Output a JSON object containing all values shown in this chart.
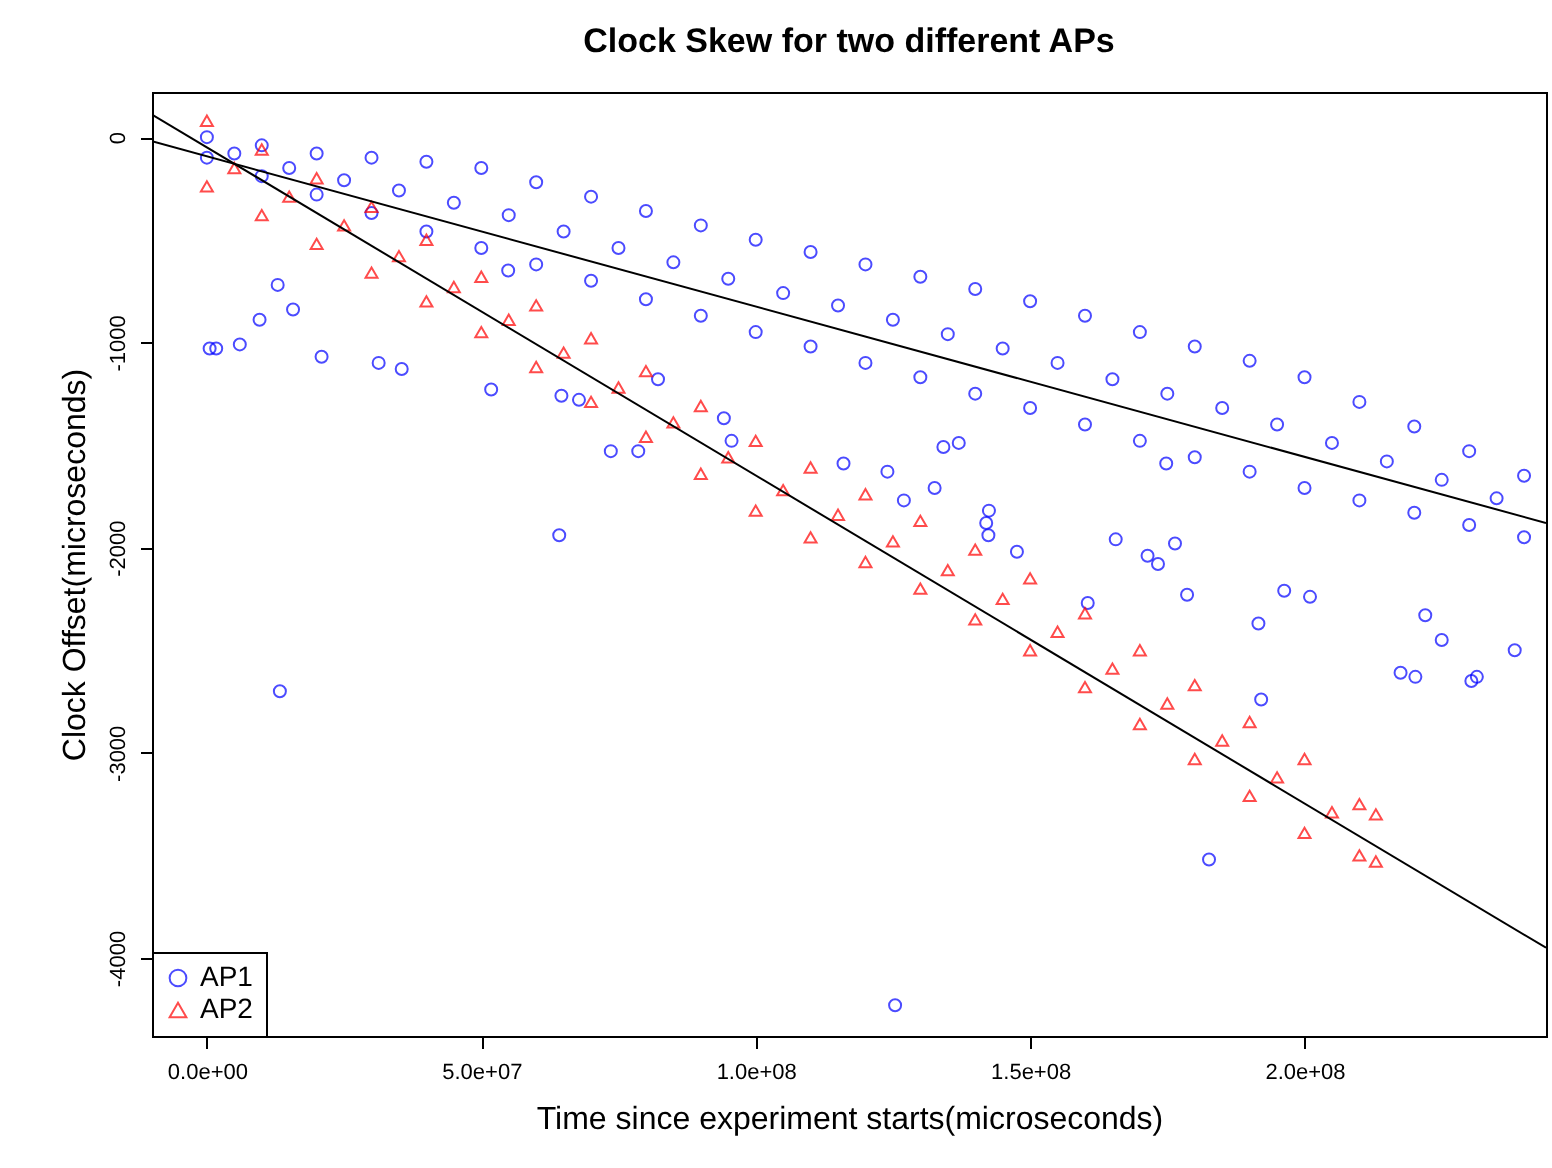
{
  "chart_data": {
    "type": "scatter",
    "title": "Clock Skew for two different APs",
    "xlabel": "Time since experiment starts(microseconds)",
    "ylabel": "Clock Offset(microseconds)",
    "xlim": [
      -10000000.0,
      244000000.0
    ],
    "ylim": [
      -4380,
      220
    ],
    "xticks": [
      {
        "value": 0,
        "label": "0.0e+00"
      },
      {
        "value": 50000000.0,
        "label": "5.0e+07"
      },
      {
        "value": 100000000.0,
        "label": "1.0e+08"
      },
      {
        "value": 150000000.0,
        "label": "1.5e+08"
      },
      {
        "value": 200000000.0,
        "label": "2.0e+08"
      }
    ],
    "yticks": [
      0,
      -1000,
      -2000,
      -3000,
      -4000
    ],
    "grid": false,
    "legend": "bottom left",
    "series": [
      {
        "name": "AP1",
        "color": "#0000ff",
        "marker": "circle",
        "x": [
          0,
          0,
          10000000.0,
          10000000.0,
          20000000.0,
          20000000.0,
          30000000.0,
          30000000.0,
          40000000.0,
          40000000.0,
          50000000.0,
          50000000.0,
          60000000.0,
          60000000.0,
          70000000.0,
          70000000.0,
          80000000.0,
          80000000.0,
          90000000.0,
          90000000.0,
          100000000.0,
          100000000.0,
          110000000.0,
          110000000.0,
          120000000.0,
          120000000.0,
          130000000.0,
          130000000.0,
          140000000.0,
          140000000.0,
          150000000.0,
          150000000.0,
          160000000.0,
          160000000.0,
          170000000.0,
          170000000.0,
          180000000.0,
          180000000.0,
          190000000.0,
          190000000.0,
          200000000.0,
          200000000.0,
          210000000.0,
          210000000.0,
          220000000.0,
          220000000.0,
          230000000.0,
          230000000.0,
          240000000.0,
          240000000.0,
          5000000.0,
          15000000.0,
          25000000.0,
          35000000.0,
          45000000.0,
          55000000.0,
          65000000.0,
          75000000.0,
          85000000.0,
          95000000.0,
          105000000.0,
          115000000.0,
          125000000.0,
          135000000.0,
          145000000.0,
          155000000.0,
          165000000.0,
          175000000.0,
          185000000.0,
          195000000.0,
          205000000.0,
          215000000.0,
          225000000.0,
          235000000.0,
          500000.0,
          1700000.0,
          6000000.0,
          9600000.0,
          12900000.0,
          15700000.0,
          20900000.0,
          31300000.0,
          35500000.0,
          51800000.0,
          54900000.0,
          64600000.0,
          67800000.0,
          73600000.0,
          78600000.0,
          64200000.0,
          82200000.0,
          94200000.0,
          95600000.0,
          116000000.0,
          124000000.0,
          127000000.0,
          132600000.0,
          134200000.0,
          137000000.0,
          142500000.0,
          142000000.0,
          142400000.0,
          147600000.0,
          160500000.0,
          165600000.0,
          171400000.0,
          173300000.0,
          176400000.0,
          178600000.0,
          191600000.0,
          196300000.0,
          201000000.0,
          192100000.0,
          222000000.0,
          225000000.0,
          217500000.0,
          220200000.0,
          230400000.0,
          231400000.0,
          238300000.0,
          182600000.0,
          174800000.0,
          13300000.0,
          125400000.0
        ],
        "values": [
          0,
          -100,
          -40,
          -190,
          -80,
          -280,
          -100,
          -370,
          -120,
          -460,
          -150,
          -540,
          -220,
          -620,
          -290,
          -700,
          -360,
          -790,
          -430,
          -870,
          -500,
          -950,
          -560,
          -1020,
          -620,
          -1100,
          -680,
          -1170,
          -740,
          -1250,
          -800,
          -1320,
          -870,
          -1400,
          -950,
          -1480,
          -1020,
          -1560,
          -1090,
          -1630,
          -1170,
          -1710,
          -1290,
          -1770,
          -1410,
          -1830,
          -1530,
          -1890,
          -1650,
          -1950,
          -80,
          -150,
          -210,
          -260,
          -320,
          -380,
          -460,
          -540,
          -610,
          -690,
          -760,
          -820,
          -890,
          -960,
          -1030,
          -1100,
          -1180,
          -1250,
          -1320,
          -1400,
          -1490,
          -1580,
          -1670,
          -1760,
          -1030,
          -1030,
          -1010,
          -890,
          -720,
          -840,
          -1070,
          -1100,
          -1130,
          -1230,
          -650,
          -1260,
          -1280,
          -1530,
          -1530,
          -1940,
          -1180,
          -1370,
          -1480,
          -1590,
          -1630,
          -1770,
          -1710,
          -1510,
          -1490,
          -1820,
          -1880,
          -1940,
          -2020,
          -2270,
          -1960,
          -2040,
          -2080,
          -1980,
          -2230,
          -2370,
          -2210,
          -2240,
          -2740,
          -2330,
          -2450,
          -2610,
          -2630,
          -2650,
          -2630,
          -2500,
          -3520,
          -1590,
          -2700,
          -4230
        ]
      },
      {
        "name": "AP2",
        "color": "#ff0000",
        "marker": "triangle",
        "x": [
          0,
          0,
          10000000.0,
          10000000.0,
          20000000.0,
          20000000.0,
          30000000.0,
          30000000.0,
          40000000.0,
          40000000.0,
          50000000.0,
          50000000.0,
          60000000.0,
          60000000.0,
          70000000.0,
          70000000.0,
          80000000.0,
          80000000.0,
          90000000.0,
          90000000.0,
          100000000.0,
          100000000.0,
          110000000.0,
          110000000.0,
          120000000.0,
          120000000.0,
          130000000.0,
          130000000.0,
          140000000.0,
          140000000.0,
          150000000.0,
          150000000.0,
          160000000.0,
          160000000.0,
          170000000.0,
          170000000.0,
          180000000.0,
          180000000.0,
          190000000.0,
          190000000.0,
          200000000.0,
          200000000.0,
          210000000.0,
          210000000.0,
          213000000.0,
          213000000.0,
          5000000.0,
          15000000.0,
          25000000.0,
          35000000.0,
          45000000.0,
          55000000.0,
          65000000.0,
          75000000.0,
          85000000.0,
          95000000.0,
          105000000.0,
          115000000.0,
          125000000.0,
          135000000.0,
          145000000.0,
          155000000.0,
          165000000.0,
          175000000.0,
          185000000.0,
          195000000.0,
          205000000.0
        ],
        "values": [
          80,
          -240,
          -60,
          -380,
          -200,
          -520,
          -340,
          -660,
          -500,
          -800,
          -680,
          -950,
          -820,
          -1120,
          -980,
          -1290,
          -1140,
          -1460,
          -1310,
          -1640,
          -1480,
          -1820,
          -1610,
          -1950,
          -1740,
          -2070,
          -1870,
          -2200,
          -2010,
          -2350,
          -2150,
          -2500,
          -2320,
          -2680,
          -2500,
          -2860,
          -2670,
          -3030,
          -2850,
          -3210,
          -3030,
          -3390,
          -3250,
          -3500,
          -3300,
          -3530,
          -150,
          -290,
          -430,
          -580,
          -730,
          -890,
          -1050,
          -1220,
          -1390,
          -1560,
          -1720,
          -1840,
          -1970,
          -2110,
          -2250,
          -2410,
          -2590,
          -2760,
          -2940,
          -3120,
          -3290
        ]
      },
      {
        "type": "line",
        "color": "#000000",
        "x": [
          -10000000.0,
          244000000.0
        ],
        "values": [
          -20,
          -1880
        ]
      },
      {
        "type": "line",
        "color": "#000000",
        "x": [
          -10000000.0,
          244000000.0
        ],
        "values": [
          110,
          -3950
        ]
      }
    ]
  }
}
